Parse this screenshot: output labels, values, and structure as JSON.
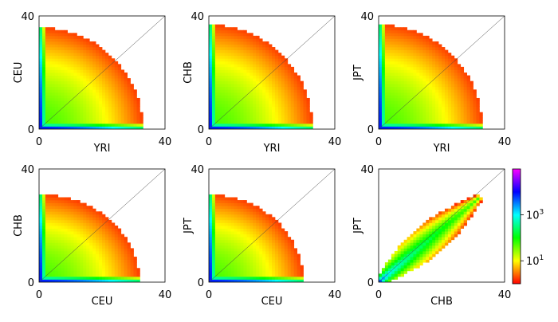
{
  "chart_data": [
    {
      "type": "heatmap",
      "xlabel": "YRI",
      "ylabel": "CEU",
      "xlim": [
        0,
        40
      ],
      "ylim": [
        0,
        40
      ],
      "x_ticks": [
        "0",
        "40"
      ],
      "y_ticks": [
        "0",
        "40"
      ],
      "diagonal": true,
      "support_region": {
        "shape": "quarter-ellipse",
        "x_extent": 33,
        "y_extent": 36
      },
      "max_density_at": [
        0,
        0
      ]
    },
    {
      "type": "heatmap",
      "xlabel": "YRI",
      "ylabel": "CHB",
      "xlim": [
        0,
        40
      ],
      "ylim": [
        0,
        40
      ],
      "x_ticks": [
        "0",
        "40"
      ],
      "y_ticks": [
        "0",
        "40"
      ],
      "diagonal": true,
      "support_region": {
        "shape": "quarter-ellipse",
        "x_extent": 33,
        "y_extent": 37
      },
      "max_density_at": [
        0,
        0
      ]
    },
    {
      "type": "heatmap",
      "xlabel": "YRI",
      "ylabel": "JPT",
      "xlim": [
        0,
        40
      ],
      "ylim": [
        0,
        40
      ],
      "x_ticks": [
        "0",
        "40"
      ],
      "y_ticks": [
        "0",
        "40"
      ],
      "diagonal": true,
      "support_region": {
        "shape": "quarter-ellipse",
        "x_extent": 33,
        "y_extent": 37
      },
      "max_density_at": [
        0,
        0
      ]
    },
    {
      "type": "heatmap",
      "xlabel": "CEU",
      "ylabel": "CHB",
      "xlim": [
        0,
        40
      ],
      "ylim": [
        0,
        40
      ],
      "x_ticks": [
        "0",
        "40"
      ],
      "y_ticks": [
        "0",
        "40"
      ],
      "diagonal": true,
      "support_region": {
        "shape": "quarter-ellipse",
        "x_extent": 32,
        "y_extent": 31
      },
      "max_density_at": [
        0,
        0
      ]
    },
    {
      "type": "heatmap",
      "xlabel": "CEU",
      "ylabel": "JPT",
      "xlim": [
        0,
        40
      ],
      "ylim": [
        0,
        40
      ],
      "x_ticks": [
        "0",
        "40"
      ],
      "y_ticks": [
        "0",
        "40"
      ],
      "diagonal": true,
      "support_region": {
        "shape": "quarter-ellipse",
        "x_extent": 30,
        "y_extent": 31
      },
      "max_density_at": [
        0,
        0
      ]
    },
    {
      "type": "heatmap",
      "xlabel": "CHB",
      "ylabel": "JPT",
      "xlim": [
        0,
        40
      ],
      "ylim": [
        0,
        40
      ],
      "x_ticks": [
        "0",
        "40"
      ],
      "y_ticks": [
        "0",
        "40"
      ],
      "diagonal": true,
      "support_region": {
        "shape": "diagonal-band",
        "x_extent": 32,
        "y_extent": 30
      },
      "max_density_at": [
        0,
        0
      ]
    }
  ],
  "colorbar": {
    "scale": "log",
    "colormap": "hsv",
    "ticks": [
      {
        "base": "10",
        "exp": "3",
        "value": 1000
      },
      {
        "base": "10",
        "exp": "1",
        "value": 10
      }
    ],
    "range": [
      1,
      100000
    ]
  },
  "colors": {
    "axis": "#000000",
    "diagonal": "#444444",
    "background": "#ffffff"
  }
}
